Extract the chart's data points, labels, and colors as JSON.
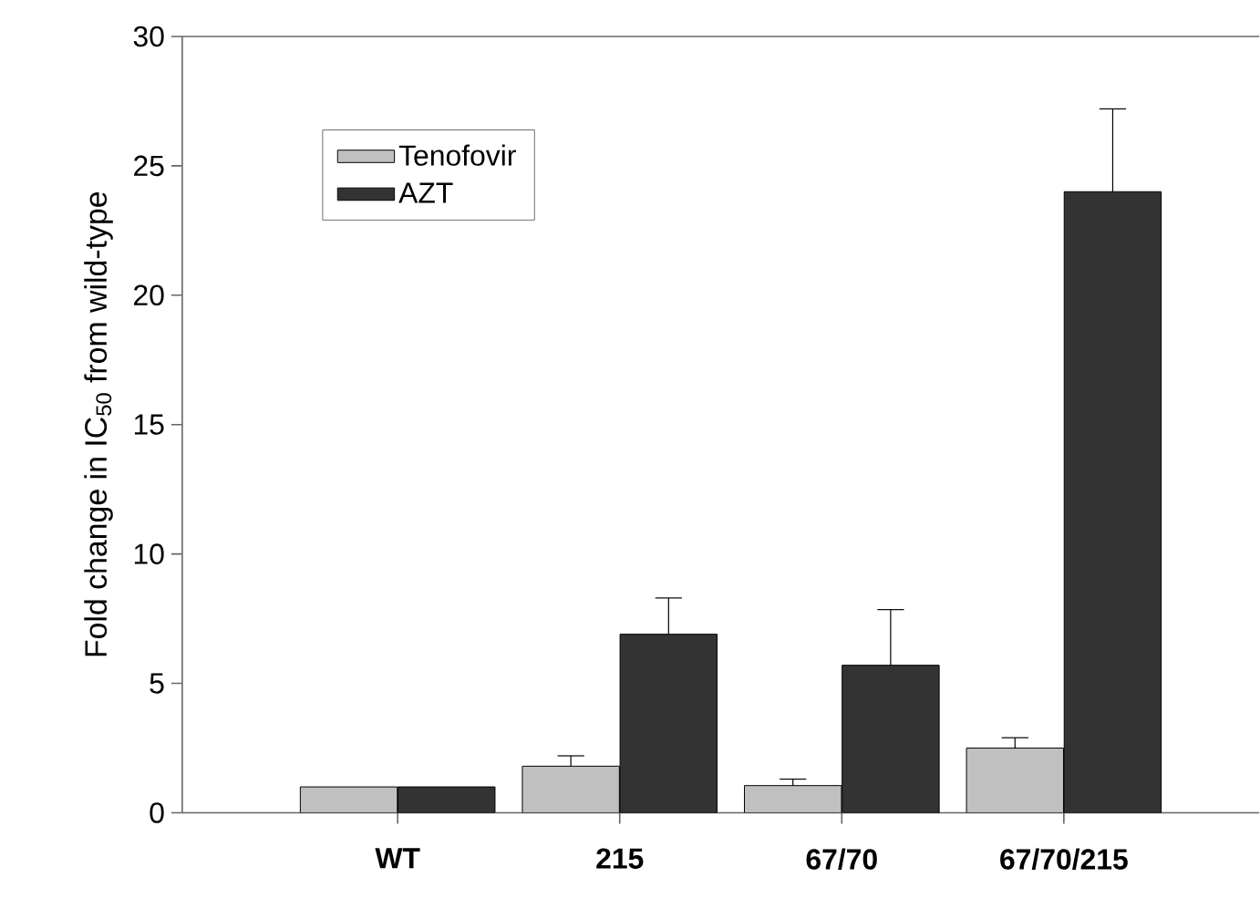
{
  "chart_data": {
    "type": "bar",
    "ylabel": "Fold change in IC$_{50}$ from wild-type",
    "categories": [
      "WT",
      "215",
      "67/70",
      "67/70/215"
    ],
    "series": [
      {
        "name": "Tenofovir",
        "color": "#c0c0c0",
        "values": [
          1,
          1.8,
          1.05,
          2.5
        ],
        "errors": [
          null,
          [
            1.8,
            2.2
          ],
          [
            1.05,
            1.3
          ],
          [
            2.5,
            2.9
          ]
        ]
      },
      {
        "name": "AZT",
        "color": "#333333",
        "values": [
          1,
          6.9,
          5.7,
          24
        ],
        "errors": [
          null,
          [
            6.9,
            8.3
          ],
          [
            5.7,
            7.85
          ],
          [
            24,
            27.2
          ]
        ]
      }
    ],
    "ylim": [
      0,
      30
    ],
    "yticks": [
      0,
      5,
      10,
      15,
      20,
      25,
      30
    ],
    "legend": "top left",
    "grid": false
  }
}
